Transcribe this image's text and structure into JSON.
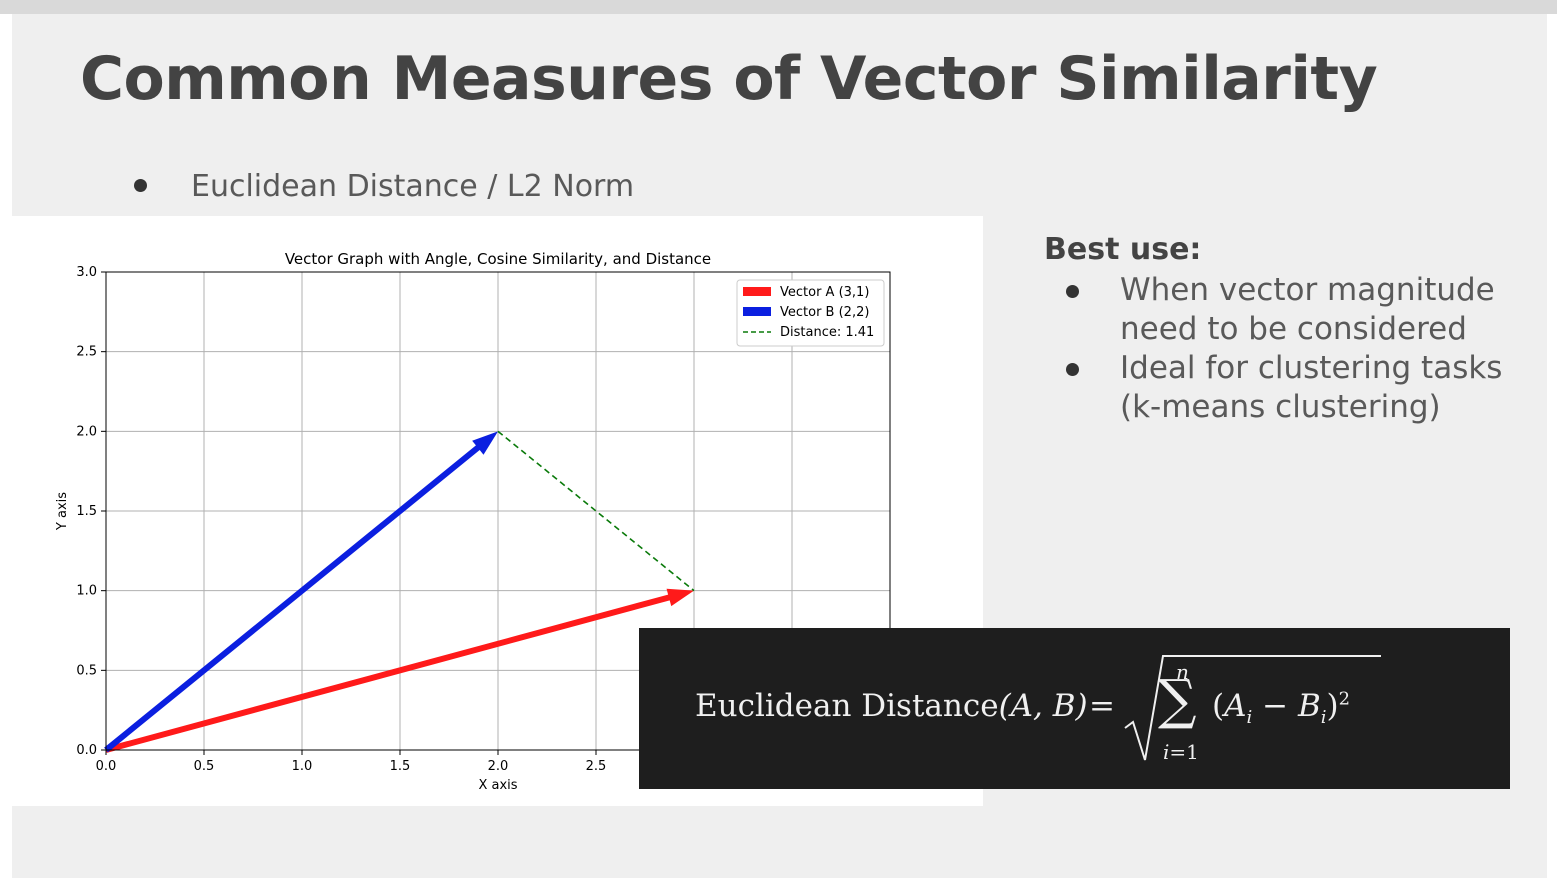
{
  "slide": {
    "title": "Common Measures of Vector Similarity",
    "bullet": "Euclidean Distance / L2 Norm"
  },
  "right_panel": {
    "heading": "Best use:",
    "items": [
      "When vector magnitude need to be considered",
      "Ideal for clustering tasks (k-means clustering)"
    ]
  },
  "formula": {
    "lhs": "Euclidean Distance",
    "args": "(A, B)",
    "eq": "=",
    "upper": "n",
    "lower_var": "i",
    "lower_val": "=1",
    "a": "A",
    "b": "B",
    "idx": "i",
    "minus": "−",
    "power": "2"
  },
  "chart_data": {
    "type": "line",
    "title": "Vector Graph with Angle, Cosine Similarity, and Distance",
    "xlabel": "X axis",
    "ylabel": "Y axis",
    "xlim": [
      0,
      4
    ],
    "ylim": [
      0,
      3
    ],
    "xticks": [
      "0.0",
      "0.5",
      "1.0",
      "1.5",
      "2.0",
      "2.5"
    ],
    "yticks": [
      "0.0",
      "0.5",
      "1.0",
      "1.5",
      "2.0",
      "2.5",
      "3.0"
    ],
    "grid": true,
    "legend_position": "top-right",
    "series": [
      {
        "name": "Vector A (3,1)",
        "x": [
          0,
          3
        ],
        "y": [
          0,
          1
        ],
        "color": "#ff1a1a",
        "style": "arrow"
      },
      {
        "name": "Vector B (2,2)",
        "x": [
          0,
          2
        ],
        "y": [
          0,
          2
        ],
        "color": "#0b1fe0",
        "style": "arrow"
      },
      {
        "name": "Distance: 1.41",
        "x": [
          2,
          3
        ],
        "y": [
          2,
          1
        ],
        "color": "#0a7a0a",
        "style": "dashed"
      }
    ]
  }
}
